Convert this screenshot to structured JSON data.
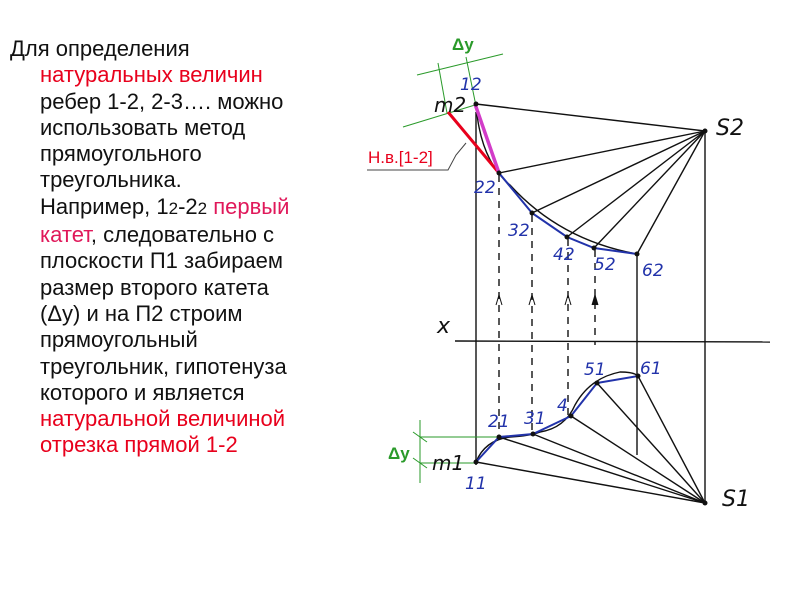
{
  "colors": {
    "red": "#e8001c",
    "pink": "#e0185a",
    "blue": "#2233aa",
    "green": "#2a9a2a",
    "magenta": "#d23cc8",
    "black": "#111111"
  },
  "text": {
    "line1": "Для определения",
    "line2": "натуральных величин",
    "line3": "ребер 1-2, 2-3…. можно",
    "line4": "использовать метод",
    "line5": "прямоугольного",
    "line6": "треугольника.",
    "line7_a": "Например, 1",
    "line7_b": "2",
    "line7_c": "-2",
    "line7_d": "2",
    "line7_e": " первый",
    "line8_a": "катет",
    "line8_b": ", следовательно с",
    "line9": "плоскости П1 забираем",
    "line10": "размер второго катета",
    "line11": "(Δу) и на П2 строим",
    "line12": "прямоугольный",
    "line13": "треугольник, гипотенуза",
    "line14": "которого и является",
    "line15": "натуральной величиной",
    "line16": "отрезка прямой 1-2"
  },
  "diagram": {
    "dy_top": "Δy",
    "dy_bottom": "Δy",
    "nv_label": "Н.в.[1-2]",
    "axis_label": "x",
    "front": {
      "p1": "12",
      "m": "m2",
      "p2": "22",
      "p3": "32",
      "p4": "42",
      "p5": "52",
      "p6": "62",
      "s": "S2"
    },
    "top": {
      "p1": "11",
      "m": "m1",
      "p2": "21",
      "p3": "31",
      "p4": "4",
      "p5": "51",
      "p6": "61",
      "s": "S1"
    }
  }
}
